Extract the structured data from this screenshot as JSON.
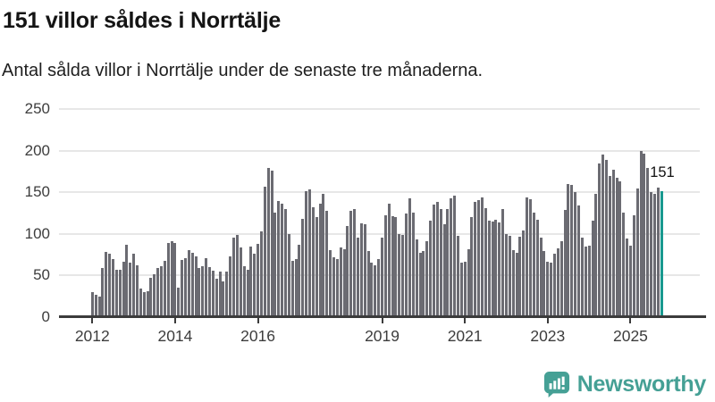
{
  "header": {
    "title": "151 villor såldes i Norrtälje",
    "subtitle": "Antal sålda villor i Norrtälje under de senaste tre månaderna."
  },
  "colors": {
    "bar": "#6b6b72",
    "highlight": "#18998f",
    "axis": "#3b3b3b",
    "grid": "#e7e7e7",
    "brand": "#45a095"
  },
  "chart_data": {
    "type": "bar",
    "title": "151 villor såldes i Norrtälje",
    "subtitle": "Antal sålda villor i Norrtälje under de senaste tre månaderna.",
    "xlabel": "",
    "ylabel": "",
    "x_unit": "month",
    "x_start": "2012-01",
    "x_end": "2025-10",
    "ylim": [
      0,
      250
    ],
    "yticks": [
      0,
      50,
      100,
      150,
      200,
      250
    ],
    "grid": true,
    "legend_position": "none",
    "values": [
      30,
      27,
      25,
      59,
      78,
      76,
      70,
      57,
      57,
      66,
      87,
      65,
      76,
      62,
      34,
      30,
      31,
      47,
      51,
      59,
      61,
      68,
      89,
      91,
      89,
      35,
      69,
      71,
      81,
      77,
      73,
      59,
      61,
      71,
      60,
      56,
      46,
      55,
      43,
      55,
      73,
      95,
      99,
      84,
      61,
      57,
      85,
      76,
      88,
      103,
      157,
      179,
      176,
      125,
      140,
      136,
      130,
      100,
      68,
      70,
      87,
      118,
      151,
      153,
      132,
      120,
      136,
      148,
      128,
      80,
      72,
      70,
      84,
      82,
      109,
      128,
      130,
      96,
      113,
      112,
      79,
      65,
      62,
      70,
      96,
      122,
      136,
      121,
      120,
      100,
      99,
      124,
      143,
      125,
      93,
      77,
      79,
      91,
      116,
      135,
      138,
      130,
      112,
      130,
      143,
      146,
      98,
      65,
      66,
      82,
      120,
      138,
      141,
      144,
      131,
      116,
      115,
      117,
      114,
      130,
      100,
      98,
      80,
      77,
      97,
      104,
      144,
      142,
      125,
      117,
      96,
      79,
      66,
      65,
      76,
      83,
      91,
      129,
      160,
      159,
      150,
      134,
      95,
      85,
      86,
      116,
      148,
      185,
      195,
      189,
      169,
      177,
      167,
      163,
      126,
      94,
      86,
      122,
      155,
      200,
      196,
      179,
      150,
      148,
      156,
      151
    ],
    "xticks": [
      {
        "label": "2012",
        "month_index": 0
      },
      {
        "label": "2014",
        "month_index": 24
      },
      {
        "label": "2016",
        "month_index": 48
      },
      {
        "label": "2019",
        "month_index": 84
      },
      {
        "label": "2021",
        "month_index": 108
      },
      {
        "label": "2023",
        "month_index": 132
      },
      {
        "label": "2025",
        "month_index": 156
      }
    ],
    "annotation": {
      "text": "151",
      "month_index": 165
    },
    "highlight": {
      "month_index": 165,
      "value": 151
    }
  },
  "footer": {
    "brand": "Newsworthy",
    "logo_icon": "newsworthy-speech-bubble-chart-icon"
  }
}
